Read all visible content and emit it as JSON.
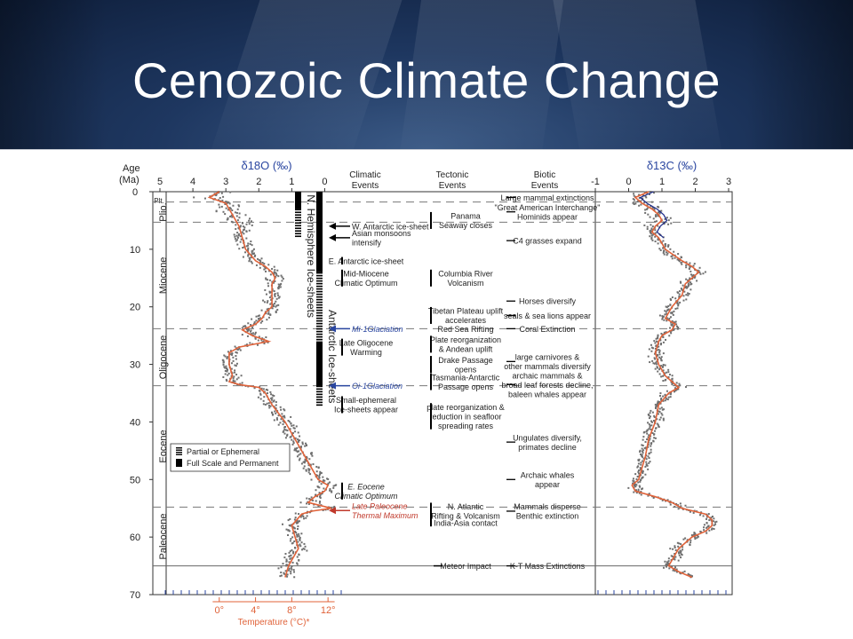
{
  "slide": {
    "title": "Cenozoic Climate Change"
  },
  "chart_data": {
    "type": "line",
    "y_axis": {
      "label_line1": "Age",
      "label_line2": "(Ma)",
      "ticks": [
        0,
        10,
        20,
        30,
        40,
        50,
        60,
        70
      ],
      "range": [
        0,
        70
      ],
      "inverted": true
    },
    "d18O_axis": {
      "label": "δ18O (‰)",
      "ticks": [
        5,
        4,
        3,
        2,
        1,
        0
      ],
      "range": [
        5,
        -0.5
      ]
    },
    "d13C_axis": {
      "label": "δ13C (‰)",
      "ticks": [
        -1,
        0,
        1,
        2,
        3
      ],
      "range": [
        -1,
        3
      ]
    },
    "temperature_axis": {
      "label": "Temperature (°C)*",
      "ticks": [
        "0°",
        "4°",
        "8°",
        "12°"
      ],
      "d18O_at_ticks": [
        3.2,
        2.1,
        1.0,
        -0.1
      ],
      "color": "#e0633a"
    },
    "column_headers": [
      "Climatic Events",
      "Tectonic Events",
      "Biotic Events"
    ],
    "epochs": [
      {
        "name": "Plt.",
        "start": 0,
        "end": 1.8
      },
      {
        "name": "Plio.",
        "start": 1.8,
        "end": 5.3
      },
      {
        "name": "Miocene",
        "start": 5.3,
        "end": 23.8
      },
      {
        "name": "Oligocene",
        "start": 23.8,
        "end": 33.7
      },
      {
        "name": "Eocene",
        "start": 33.7,
        "end": 54.8
      },
      {
        "name": "Paleocene",
        "start": 54.8,
        "end": 65
      }
    ],
    "boundaries_dashed": [
      1.8,
      5.3,
      23.8,
      33.7,
      54.8
    ],
    "boundary_solid": 65,
    "d18O_series": {
      "name": "δ18O",
      "color": "#e0633a",
      "points": [
        [
          0,
          3.2
        ],
        [
          1,
          3.5
        ],
        [
          2,
          3.0
        ],
        [
          3,
          2.9
        ],
        [
          4,
          2.8
        ],
        [
          5,
          2.7
        ],
        [
          6,
          2.6
        ],
        [
          8,
          2.5
        ],
        [
          10,
          2.4
        ],
        [
          12,
          2.1
        ],
        [
          13,
          1.8
        ],
        [
          14,
          1.6
        ],
        [
          15,
          1.5
        ],
        [
          16,
          1.6
        ],
        [
          18,
          1.6
        ],
        [
          20,
          1.6
        ],
        [
          21,
          1.8
        ],
        [
          22,
          1.9
        ],
        [
          23,
          2.1
        ],
        [
          24,
          2.5
        ],
        [
          25,
          2.2
        ],
        [
          26,
          1.7
        ],
        [
          27,
          2.6
        ],
        [
          28,
          2.9
        ],
        [
          30,
          2.9
        ],
        [
          32,
          2.8
        ],
        [
          33,
          2.9
        ],
        [
          33.5,
          2.6
        ],
        [
          34,
          2.0
        ],
        [
          35,
          1.8
        ],
        [
          37,
          1.6
        ],
        [
          40,
          1.2
        ],
        [
          43,
          0.9
        ],
        [
          46,
          0.6
        ],
        [
          48,
          0.4
        ],
        [
          50,
          0.2
        ],
        [
          51,
          -0.1
        ],
        [
          52,
          0.0
        ],
        [
          53,
          0.3
        ],
        [
          54,
          0.5
        ],
        [
          55,
          -0.2
        ],
        [
          55.5,
          0.4
        ],
        [
          56,
          0.7
        ],
        [
          58,
          1.0
        ],
        [
          60,
          0.9
        ],
        [
          62,
          0.8
        ],
        [
          63,
          0.9
        ],
        [
          65,
          1.1
        ],
        [
          67,
          1.2
        ]
      ]
    },
    "d13C_series": {
      "name": "δ13C",
      "color": "#e0633a",
      "points": [
        [
          0,
          0.6
        ],
        [
          1,
          0.2
        ],
        [
          2,
          0.4
        ],
        [
          3,
          0.7
        ],
        [
          4,
          0.9
        ],
        [
          5,
          1.0
        ],
        [
          6,
          0.8
        ],
        [
          7,
          0.7
        ],
        [
          8,
          0.9
        ],
        [
          10,
          1.1
        ],
        [
          12,
          1.6
        ],
        [
          13,
          1.9
        ],
        [
          14,
          2.1
        ],
        [
          15,
          1.9
        ],
        [
          16,
          1.7
        ],
        [
          18,
          1.6
        ],
        [
          20,
          1.3
        ],
        [
          22,
          1.1
        ],
        [
          23,
          1.4
        ],
        [
          24,
          1.3
        ],
        [
          25,
          1.0
        ],
        [
          26,
          0.9
        ],
        [
          28,
          0.8
        ],
        [
          30,
          0.9
        ],
        [
          32,
          1.1
        ],
        [
          33,
          1.3
        ],
        [
          34,
          1.5
        ],
        [
          35,
          1.2
        ],
        [
          37,
          0.9
        ],
        [
          40,
          0.8
        ],
        [
          43,
          0.6
        ],
        [
          46,
          0.5
        ],
        [
          48,
          0.4
        ],
        [
          50,
          0.3
        ],
        [
          51,
          0.1
        ],
        [
          52,
          0.2
        ],
        [
          53,
          0.8
        ],
        [
          54,
          1.3
        ],
        [
          55,
          1.6
        ],
        [
          56,
          2.3
        ],
        [
          57,
          2.5
        ],
        [
          58,
          2.5
        ],
        [
          59,
          2.3
        ],
        [
          60,
          1.9
        ],
        [
          62,
          1.5
        ],
        [
          64,
          1.3
        ],
        [
          65,
          1.2
        ],
        [
          66,
          1.5
        ],
        [
          67,
          1.9
        ]
      ]
    },
    "ice_sheets": {
      "northern_label": "N. Hemisphere Ice-sheets",
      "antarctic_label": "Antarctic Ice-sheets",
      "northern_full": [
        0,
        3
      ],
      "northern_partial": [
        3,
        7.8
      ],
      "antarctic_full": [
        0,
        14
      ],
      "antarctic_partial": [
        14,
        26
      ],
      "antarctic_full_2": [
        26,
        33.7
      ],
      "antarctic_partial_2": [
        33.7,
        37
      ]
    },
    "legend": {
      "partial": "Partial or Ephemeral",
      "full": "Full Scale and Permanent"
    },
    "climatic_events": [
      {
        "age": 6,
        "lines": [
          "W. Antarctic ice-sheet"
        ],
        "arrow": "black"
      },
      {
        "age": 8,
        "lines": [
          "Asian monsoons",
          "intensify"
        ],
        "arrow": "black"
      },
      {
        "age": 12,
        "lines": [
          "E. Antarctic ice-sheet"
        ]
      },
      {
        "age": 15,
        "lines": [
          "Mid-Miocene",
          "Climatic Optimum"
        ]
      },
      {
        "age": 23.8,
        "lines": [
          "Mi-1Glaciation"
        ],
        "style": "italic-blue",
        "arrow": "blue"
      },
      {
        "age": 27,
        "lines": [
          "Late Oligocene",
          "Warming"
        ]
      },
      {
        "age": 33.7,
        "lines": [
          "Oi-1Glaciation"
        ],
        "style": "italic-blue",
        "arrow": "blue"
      },
      {
        "age": 37,
        "lines": [
          "Small-ephemeral",
          "Ice-sheets appear"
        ]
      },
      {
        "age": 52,
        "lines": [
          "E. Eocene",
          "Climatic Optimum"
        ],
        "style": "italic"
      },
      {
        "age": 55.4,
        "lines": [
          "Late Paleocene",
          "Thermal Maximum"
        ],
        "style": "italic-red",
        "arrow": "red"
      }
    ],
    "tectonic_events": [
      {
        "age": 5,
        "lines": [
          "Panama",
          "Seaway closes"
        ]
      },
      {
        "age": 15,
        "lines": [
          "Columbia River",
          "Volcanism"
        ]
      },
      {
        "age": 21.5,
        "lines": [
          "Tibetan Plateau uplift",
          "accelerates"
        ]
      },
      {
        "age": 23.8,
        "lines": [
          "Red Sea Rifting"
        ]
      },
      {
        "age": 26.5,
        "lines": [
          "Plate reorganization",
          "& Andean uplift"
        ]
      },
      {
        "age": 30,
        "lines": [
          "Drake Passage",
          "opens"
        ]
      },
      {
        "age": 33,
        "lines": [
          "Tasmania-Antarctic",
          "Passage opens"
        ]
      },
      {
        "age": 39,
        "lines": [
          "plate reorganization &",
          "reduction in seafloor",
          "spreading rates"
        ]
      },
      {
        "age": 55.5,
        "lines": [
          "N. Atlantic",
          "Rifting & Volcanism"
        ]
      },
      {
        "age": 57.5,
        "lines": [
          "India-Asia contact"
        ]
      },
      {
        "age": 65,
        "lines": [
          "Meteor Impact"
        ]
      }
    ],
    "biotic_events": [
      {
        "age": 1,
        "lines": [
          "Large mammal extinctions"
        ]
      },
      {
        "age": 3.5,
        "lines": [
          "\"Great American Interchange\"",
          "Hominids appear"
        ]
      },
      {
        "age": 8.5,
        "lines": [
          "C4 grasses expand"
        ]
      },
      {
        "age": 19,
        "lines": [
          "Horses diversify"
        ]
      },
      {
        "age": 21.5,
        "lines": [
          "seals & sea lions appear"
        ]
      },
      {
        "age": 23.8,
        "lines": [
          "Coral Extinction"
        ]
      },
      {
        "age": 29.5,
        "lines": [
          "large carnivores &",
          "other mammals diversify"
        ]
      },
      {
        "age": 33.5,
        "lines": [
          "archaic mammals &",
          "broad leaf forests decline,",
          "baleen whales appear"
        ]
      },
      {
        "age": 43.5,
        "lines": [
          "Ungulates diversify,",
          "primates decline"
        ]
      },
      {
        "age": 50,
        "lines": [
          "Archaic whales",
          "appear"
        ]
      },
      {
        "age": 55.5,
        "lines": [
          "Mammals disperse",
          "Benthic extinction"
        ]
      },
      {
        "age": 65,
        "lines": [
          "K-T Mass Extinctions"
        ]
      }
    ]
  }
}
